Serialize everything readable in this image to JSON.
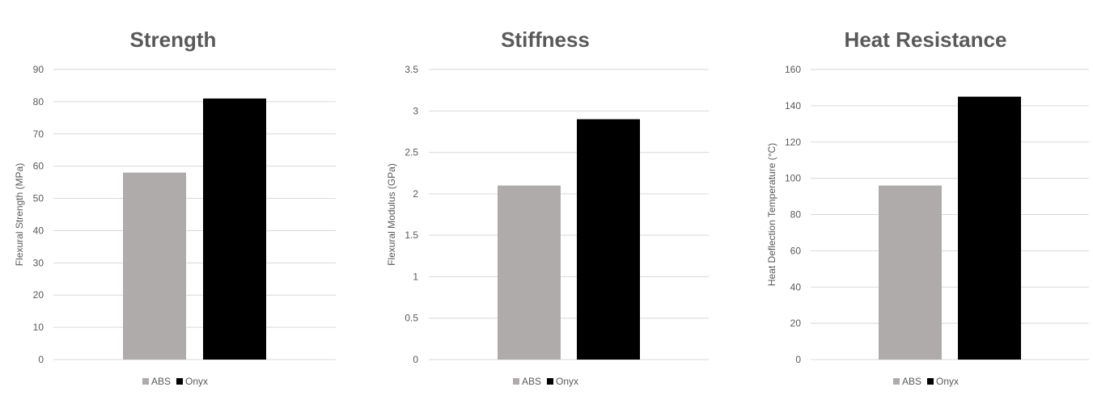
{
  "colors": {
    "ABS": "#afabab",
    "Onyx": "#000000"
  },
  "chart_data": [
    {
      "type": "bar",
      "title": "Strength",
      "ylabel": "Flexural Strength (MPa)",
      "xlabel": "",
      "ylim": [
        0,
        90
      ],
      "yticks": [
        "0",
        "10",
        "20",
        "30",
        "40",
        "50",
        "60",
        "70",
        "80",
        "90"
      ],
      "grid": true,
      "legend": "bottom",
      "series": [
        {
          "name": "ABS",
          "values": [
            58
          ]
        },
        {
          "name": "Onyx",
          "values": [
            81
          ]
        }
      ]
    },
    {
      "type": "bar",
      "title": "Stiffness",
      "ylabel": "Flexural Modulus (GPa)",
      "xlabel": "",
      "ylim": [
        0,
        3.5
      ],
      "yticks": [
        "0",
        "0.5",
        "1",
        "1.5",
        "2",
        "2.5",
        "3",
        "3.5"
      ],
      "grid": true,
      "legend": "bottom",
      "series": [
        {
          "name": "ABS",
          "values": [
            2.1
          ]
        },
        {
          "name": "Onyx",
          "values": [
            2.9
          ]
        }
      ]
    },
    {
      "type": "bar",
      "title": "Heat Resistance",
      "ylabel": "Heat Deflection Temperature (°C)",
      "xlabel": "",
      "ylim": [
        0,
        160
      ],
      "yticks": [
        "0",
        "20",
        "40",
        "60",
        "80",
        "100",
        "120",
        "140",
        "160"
      ],
      "grid": true,
      "legend": "bottom",
      "series": [
        {
          "name": "ABS",
          "values": [
            96
          ]
        },
        {
          "name": "Onyx",
          "values": [
            145
          ]
        }
      ]
    }
  ]
}
